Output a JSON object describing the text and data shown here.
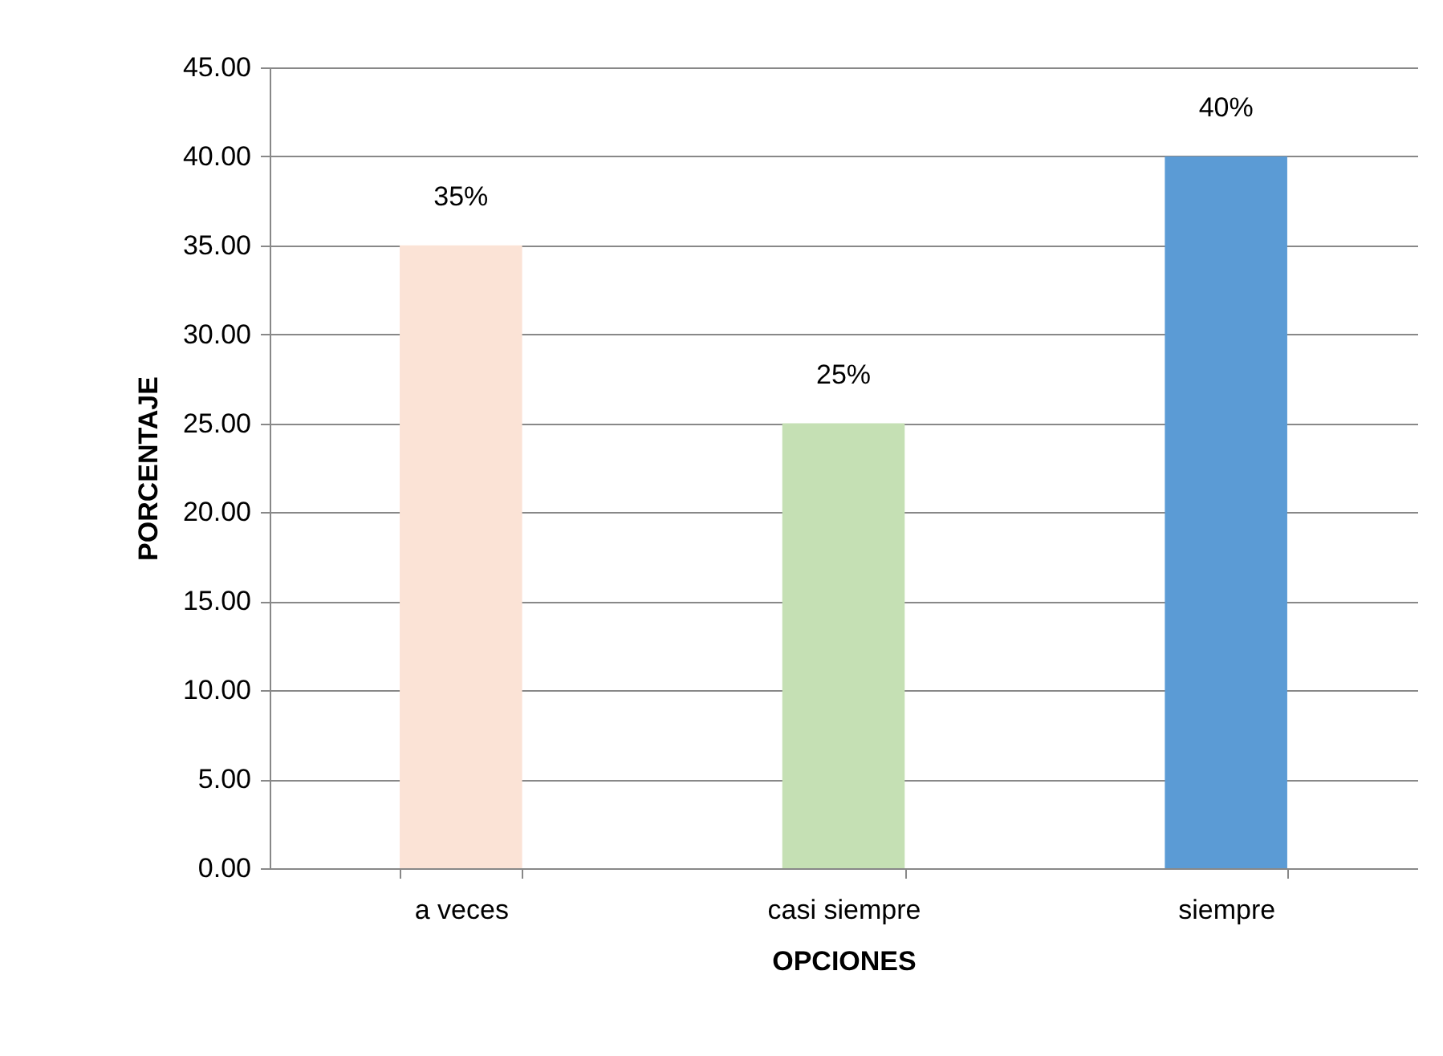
{
  "chart_data": {
    "type": "bar",
    "xlabel": "OPCIONES",
    "ylabel": "PORCENTAJE",
    "categories": [
      "a veces",
      "casi siempre",
      "siempre"
    ],
    "values": [
      35,
      25,
      40
    ],
    "value_labels": [
      "35%",
      "25%",
      "40%"
    ],
    "colors": [
      "#fbe3d6",
      "#c5e0b4",
      "#5b9bd5"
    ],
    "ylim": [
      0,
      45
    ],
    "yticks": [
      {
        "value": 0,
        "label": "0.00"
      },
      {
        "value": 5,
        "label": "5.00"
      },
      {
        "value": 10,
        "label": "10.00"
      },
      {
        "value": 15,
        "label": "15.00"
      },
      {
        "value": 20,
        "label": "20.00"
      },
      {
        "value": 25,
        "label": "25.00"
      },
      {
        "value": 30,
        "label": "30.00"
      },
      {
        "value": 35,
        "label": "35.00"
      },
      {
        "value": 40,
        "label": "40.00"
      },
      {
        "value": 45,
        "label": "45.00"
      }
    ],
    "grid": "y"
  }
}
